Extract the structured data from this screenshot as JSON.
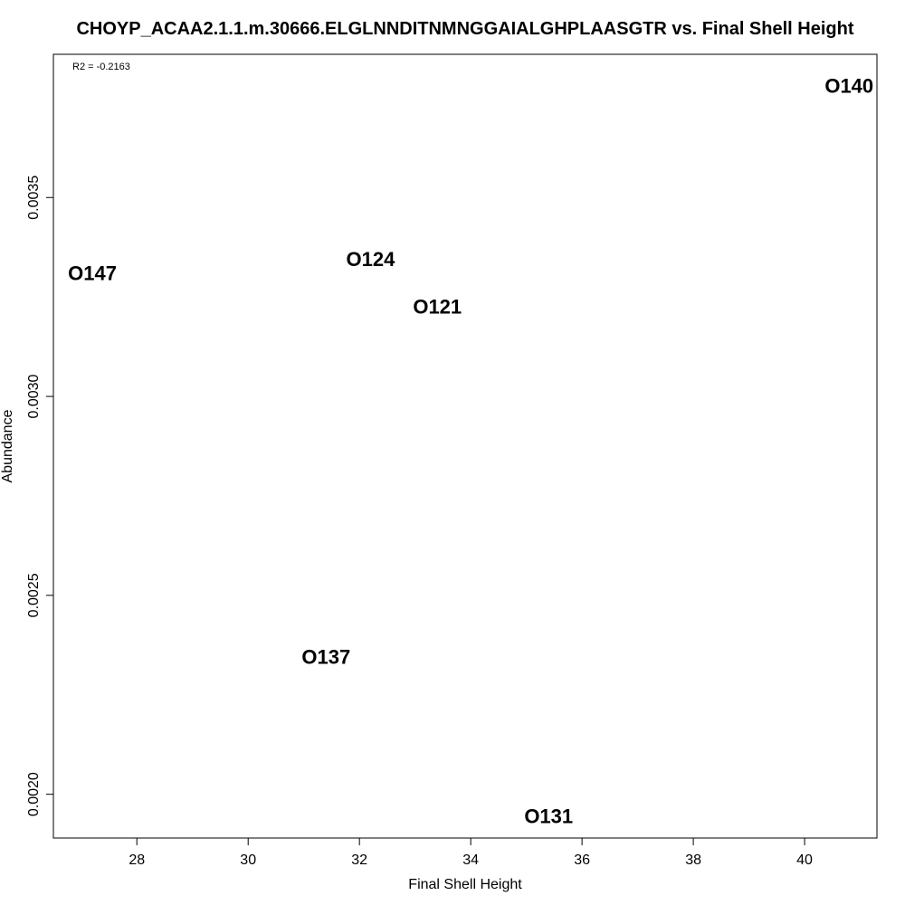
{
  "chart_data": {
    "type": "scatter",
    "title": "CHOYP_ACAA2.1.1.m.30666.ELGLNNDITNMNGGAIALGHPLAASGTR vs. Final Shell Height",
    "xlabel": "Final Shell Height",
    "ylabel": "Abundance",
    "annotation": "R2 = -0.2163",
    "xlim": [
      26.5,
      41.3
    ],
    "ylim": [
      0.00189,
      0.00386
    ],
    "x_ticks": [
      28,
      30,
      32,
      34,
      36,
      38,
      40
    ],
    "x_tick_labels": [
      "28",
      "30",
      "32",
      "34",
      "36",
      "38",
      "40"
    ],
    "y_ticks": [
      0.002,
      0.0025,
      0.003,
      0.0035
    ],
    "y_tick_labels": [
      "0.0020",
      "0.0025",
      "0.0030",
      "0.0035"
    ],
    "grid": false,
    "points": [
      {
        "label": "O140",
        "x": 40.8,
        "y": 0.00378
      },
      {
        "label": "O147",
        "x": 27.2,
        "y": 0.00331
      },
      {
        "label": "O124",
        "x": 32.2,
        "y": 0.003345
      },
      {
        "label": "O121",
        "x": 33.4,
        "y": 0.003225
      },
      {
        "label": "O137",
        "x": 31.4,
        "y": 0.002345
      },
      {
        "label": "O131",
        "x": 35.4,
        "y": 0.001945
      }
    ]
  }
}
